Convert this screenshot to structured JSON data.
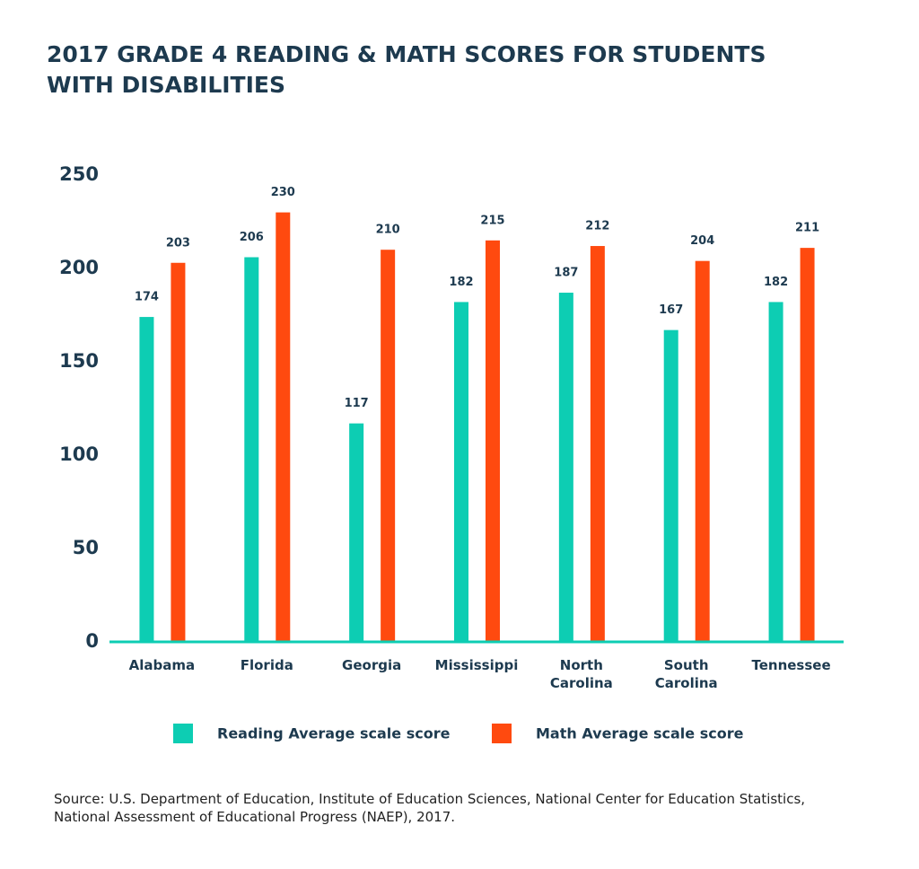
{
  "chart_data": {
    "type": "bar",
    "title": "2017 GRADE 4 READING & MATH SCORES FOR STUDENTS WITH DISABILITIES",
    "categories": [
      "Alabama",
      "Florida",
      "Georgia",
      "Mississippi",
      "North Carolina",
      "South Carolina",
      "Tennessee"
    ],
    "series": [
      {
        "name": "Reading Average scale score",
        "color": "#0dcdb3",
        "values": [
          174,
          206,
          117,
          182,
          187,
          167,
          182
        ]
      },
      {
        "name": "Math Average scale score",
        "color": "#ff4a0f",
        "values": [
          203,
          230,
          210,
          215,
          212,
          204,
          211
        ]
      }
    ],
    "ylim": [
      0,
      250
    ],
    "yticks": [
      0,
      50,
      100,
      150,
      200,
      250
    ],
    "grid": false,
    "source": "Source: U.S. Department of Education, Institute of Education Sciences, National Center for Education Statistics, National Assessment of Educational Progress (NAEP), 2017."
  }
}
